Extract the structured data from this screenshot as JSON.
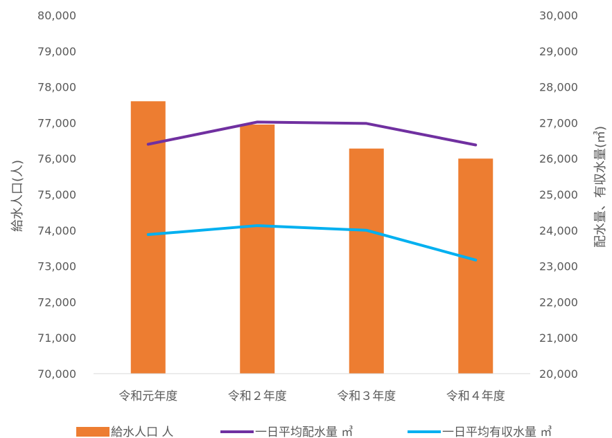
{
  "chart_data": {
    "type": "bar",
    "categories": [
      "令和元年度",
      "令和２年度",
      "令和３年度",
      "令和４年度"
    ],
    "ylabel_left": "給水人口(人)",
    "ylabel_right": "配水量、有収水量(㎥)",
    "ylim_left": [
      70000,
      80000
    ],
    "ylim_right": [
      20000,
      30000
    ],
    "left_ticks": [
      "70,000",
      "71,000",
      "72,000",
      "73,000",
      "74,000",
      "75,000",
      "76,000",
      "77,000",
      "78,000",
      "79,000",
      "80,000"
    ],
    "right_ticks": [
      "20,000",
      "21,000",
      "22,000",
      "23,000",
      "24,000",
      "25,000",
      "26,000",
      "27,000",
      "28,000",
      "29,000",
      "30,000"
    ],
    "grid": false,
    "legend_position": "bottom",
    "series": [
      {
        "name": "給水人口 人",
        "kind": "bar",
        "axis": "left",
        "color": "#ED7D31",
        "values": [
          77600,
          76950,
          76280,
          76000
        ]
      },
      {
        "name": "一日平均配水量 ㎥",
        "kind": "line",
        "axis": "right",
        "color": "#7030A0",
        "values": [
          26400,
          27020,
          26980,
          26380
        ]
      },
      {
        "name": "一日平均有収水量 ㎥",
        "kind": "line",
        "axis": "right",
        "color": "#00B0F0",
        "values": [
          23880,
          24130,
          24000,
          23170
        ]
      }
    ]
  }
}
